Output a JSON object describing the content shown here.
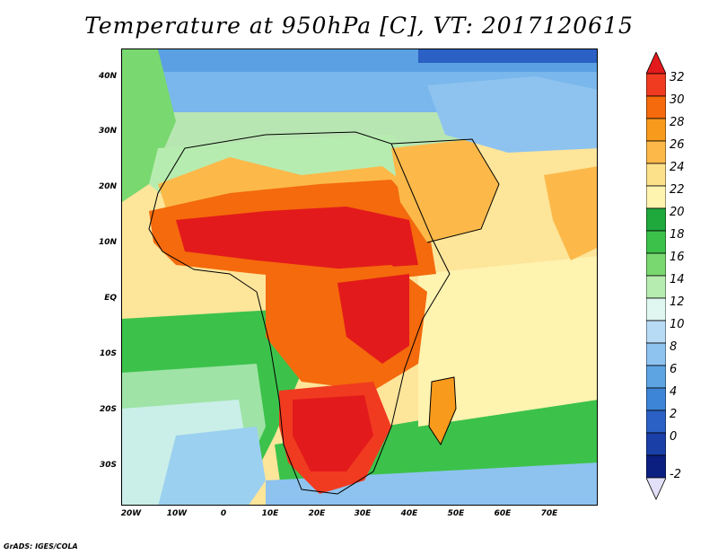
{
  "title": "Temperature at 950hPa [C], VT: 2017120615",
  "footer": "GrADS: IGES/COLA",
  "map": {
    "region": "Africa and Middle East",
    "variable": "Temperature at 950hPa",
    "units": "C",
    "valid_time": "2017120615"
  },
  "lat_ticks": [
    "40N",
    "30N",
    "20N",
    "10N",
    "EQ",
    "10S",
    "20S",
    "30S"
  ],
  "lon_ticks": [
    "20W",
    "10W",
    "0",
    "10E",
    "20E",
    "30E",
    "40E",
    "50E",
    "60E",
    "70E"
  ],
  "colorbar": {
    "labels": [
      "32",
      "30",
      "28",
      "26",
      "24",
      "22",
      "20",
      "18",
      "16",
      "14",
      "12",
      "10",
      "8",
      "6",
      "4",
      "2",
      "0",
      "-2"
    ],
    "colors": [
      "#e31a1c",
      "#f03b20",
      "#f46a0c",
      "#f89a1c",
      "#fcb94a",
      "#fde08a",
      "#fff3b0",
      "#1fa83c",
      "#3cc24b",
      "#79d86f",
      "#b7ecb0",
      "#dff6f1",
      "#b8dbf5",
      "#8ec3ef",
      "#5da4e3",
      "#3d85d6",
      "#2b60c4",
      "#1a3fa6",
      "#0b1f80",
      "#e2e0f8"
    ]
  }
}
